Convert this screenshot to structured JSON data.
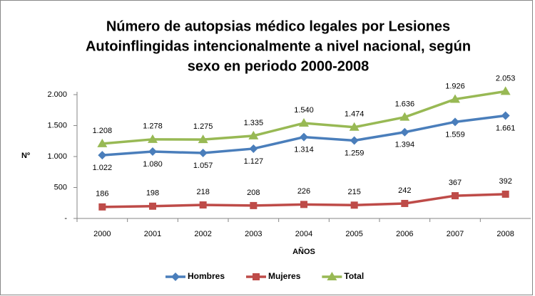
{
  "chart_data": {
    "type": "line",
    "title": [
      "Número de autopsias médico legales  por Lesiones",
      "Autoinflingidas intencionalmente a nivel nacional, según",
      "sexo en periodo  2000-2008"
    ],
    "xlabel": "AÑOS",
    "ylabel": "Nº",
    "categories": [
      "2000",
      "2001",
      "2002",
      "2003",
      "2004",
      "2005",
      "2006",
      "2007",
      "2008"
    ],
    "series": [
      {
        "name": "Hombres",
        "color": "#4a7ebb",
        "marker": "diamond",
        "label_position": "below",
        "values": [
          1022,
          1080,
          1057,
          1127,
          1314,
          1259,
          1394,
          1559,
          1661
        ],
        "value_labels": [
          "1.022",
          "1.080",
          "1.057",
          "1.127",
          "1.314",
          "1.259",
          "1.394",
          "1.559",
          "1.661"
        ]
      },
      {
        "name": "Mujeres",
        "color": "#be4b48",
        "marker": "square",
        "label_position": "above",
        "values": [
          186,
          198,
          218,
          208,
          226,
          215,
          242,
          367,
          392
        ]
      },
      {
        "name": "Total",
        "color": "#98b954",
        "marker": "triangle",
        "label_position": "above",
        "values": [
          1208,
          1278,
          1275,
          1335,
          1540,
          1474,
          1636,
          1926,
          2053
        ],
        "value_labels": [
          "1.208",
          "1.278",
          "1.275",
          "1.335",
          "1.540",
          "1.474",
          "1.636",
          "1.926",
          "2.053"
        ]
      }
    ],
    "ylim": [
      0,
      2000
    ],
    "yticks": [
      {
        "value": 0,
        "label": "-"
      },
      500,
      {
        "value": 1000,
        "label": "1.000"
      },
      {
        "value": 1500,
        "label": "1.500"
      },
      {
        "value": 2000,
        "label": "2.000"
      }
    ],
    "grid": false,
    "legend": "bottom"
  }
}
